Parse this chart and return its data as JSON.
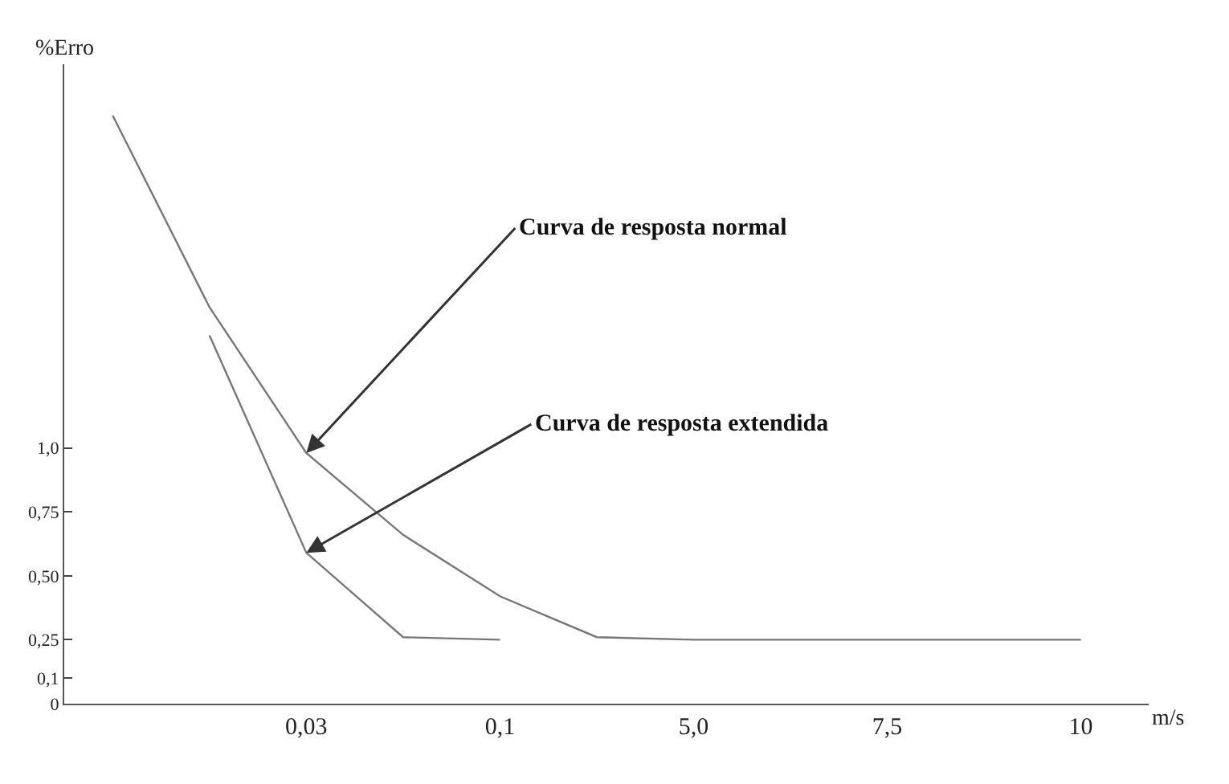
{
  "chart_data": {
    "type": "line",
    "xlabel": "m/s",
    "ylabel": "%Erro",
    "categories": [
      null,
      null,
      "0,03",
      null,
      "0,1",
      null,
      "5,0",
      null,
      "7,5",
      null,
      "10"
    ],
    "series": [
      {
        "color": "#777777",
        "values": [
          2.3,
          1.55,
          0.98,
          0.66,
          0.42,
          0.26,
          0.25,
          0.25,
          0.25,
          0.25,
          0.25
        ]
      },
      {
        "color": "#777777",
        "values": [
          null,
          1.44,
          0.59,
          0.26,
          0.25,
          null,
          null,
          null,
          null,
          null,
          null
        ]
      }
    ],
    "ylim": [
      0,
      2.5
    ],
    "yticks": [
      0,
      {
        "value": 0.1,
        "label": "0,1"
      },
      {
        "value": 0.25,
        "label": "0,25"
      },
      {
        "value": 0.5,
        "label": "0,50"
      },
      {
        "value": 0.75,
        "label": "0,75"
      },
      {
        "value": 1.0,
        "label": "1,0"
      }
    ],
    "annotations": [
      {
        "text": "Curva de resposta normal",
        "x": "0,03",
        "y": 0.98
      },
      {
        "text": "Curva de resposta extendida",
        "x": "0,03",
        "y": 0.59
      }
    ],
    "marker": "none",
    "line_style": "solid"
  }
}
